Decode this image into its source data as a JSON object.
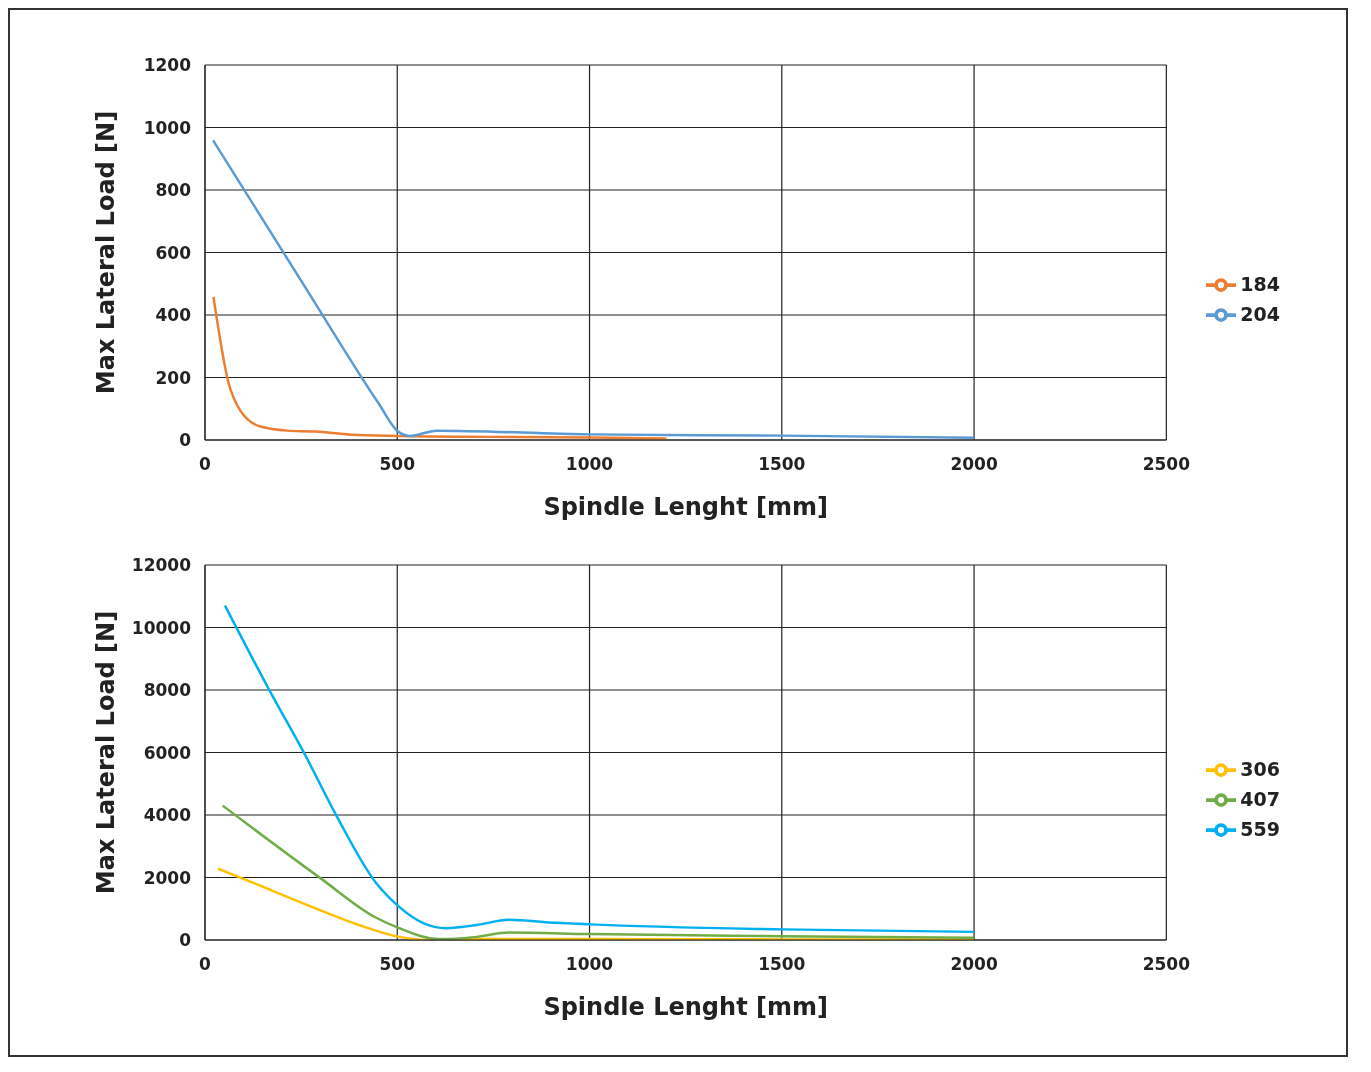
{
  "chart_data": [
    {
      "type": "line",
      "xlabel": "Spindle Lenght [mm]",
      "ylabel": "Max Lateral Load [N]",
      "xlim": [
        0,
        2500
      ],
      "xticks": [
        0,
        500,
        1000,
        1500,
        2000,
        2500
      ],
      "ylim": [
        0,
        1200
      ],
      "yticks": [
        0,
        200,
        400,
        600,
        800,
        1000,
        1200
      ],
      "grid": true,
      "legend": "right",
      "series": [
        {
          "name": "184",
          "color": "#ed7d31",
          "x": [
            22,
            61,
            92,
            144,
            214,
            288,
            379,
            502,
            750,
            1000,
            1200
          ],
          "values": [
            458,
            184,
            94,
            43,
            30,
            27,
            17,
            13,
            10,
            8,
            5
          ]
        },
        {
          "name": "204",
          "color": "#5b9bd5",
          "x": [
            21,
            260,
            450,
            502,
            532,
            603,
            1000,
            1500,
            2000
          ],
          "values": [
            959,
            490,
            120,
            27,
            13,
            30,
            18,
            14,
            7
          ]
        }
      ]
    },
    {
      "type": "line",
      "xlabel": "Spindle Lenght [mm]",
      "ylabel": "Max Lateral Load [N]",
      "xlim": [
        0,
        2500
      ],
      "xticks": [
        0,
        500,
        1000,
        1500,
        2000,
        2500
      ],
      "ylim": [
        0,
        12000
      ],
      "yticks": [
        0,
        2000,
        4000,
        6000,
        8000,
        10000,
        12000
      ],
      "grid": true,
      "legend": "right",
      "series": [
        {
          "name": "306",
          "color": "#ffc000",
          "x": [
            34,
            95,
            300,
            400,
            505,
            585,
            700,
            1000,
            1500,
            2000
          ],
          "values": [
            2280,
            1980,
            950,
            480,
            100,
            0,
            30,
            30,
            20,
            20
          ]
        },
        {
          "name": "407",
          "color": "#70ad47",
          "x": [
            46,
            300,
            444,
            505,
            606,
            707,
            790,
            1000,
            1500,
            2000
          ],
          "values": [
            4300,
            1980,
            720,
            380,
            30,
            100,
            240,
            190,
            120,
            70
          ]
        },
        {
          "name": "559",
          "color": "#00b0f0",
          "x": [
            52,
            168,
            260,
            340,
            444,
            505,
            566,
            627,
            707,
            790,
            912,
            1000,
            1500,
            2000
          ],
          "values": [
            10700,
            7980,
            5930,
            4020,
            1840,
            1060,
            550,
            380,
            480,
            650,
            550,
            500,
            340,
            260
          ]
        }
      ]
    }
  ]
}
